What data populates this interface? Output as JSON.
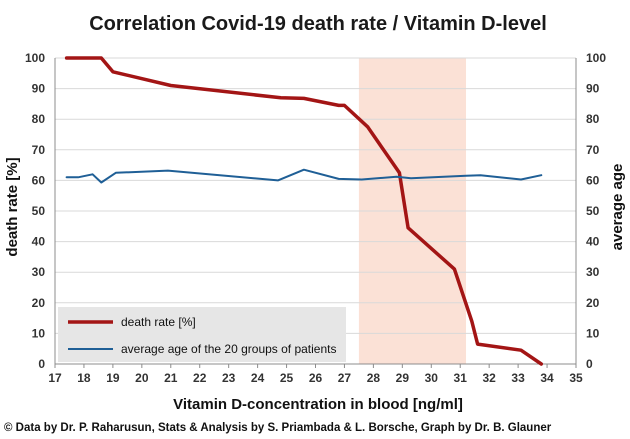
{
  "chart_data": {
    "type": "line",
    "title": "Correlation Covid-19 death rate / Vitamin D-level",
    "xlabel": "Vitamin D-concentration in blood [ng/ml]",
    "ylabel": "death rate [%]",
    "y2label": "average age",
    "xlim": [
      17,
      35
    ],
    "ylim": [
      0,
      100
    ],
    "y2lim": [
      0,
      100
    ],
    "x_ticks": [
      17,
      18,
      19,
      20,
      21,
      22,
      23,
      24,
      25,
      26,
      27,
      28,
      29,
      30,
      31,
      32,
      33,
      34,
      35
    ],
    "y_ticks": [
      0,
      10,
      20,
      30,
      40,
      50,
      60,
      70,
      80,
      90,
      100
    ],
    "y2_ticks": [
      0,
      10,
      20,
      30,
      40,
      50,
      60,
      70,
      80,
      90,
      100
    ],
    "shaded_region": {
      "x_start": 27.5,
      "x_end": 31.2,
      "color": "#fbe1d6"
    },
    "legend_position": "bottom-left",
    "series": [
      {
        "name": "death rate [%]",
        "axis": "left",
        "color": "#a31515",
        "x": [
          17.4,
          18.6,
          19.0,
          21.0,
          24.8,
          25.6,
          26.8,
          27.0,
          27.8,
          28.9,
          29.2,
          30.8,
          31.4,
          31.6,
          33.1,
          33.8
        ],
        "y": [
          100,
          100,
          95.5,
          91,
          87,
          86.8,
          84.5,
          84.5,
          77.5,
          62.5,
          44.5,
          31,
          14,
          6.5,
          4.5,
          0
        ]
      },
      {
        "name": "average age of the 20 groups of patients",
        "axis": "right",
        "color": "#1f5f96",
        "x": [
          17.4,
          17.8,
          18.3,
          18.6,
          19.1,
          20.9,
          24.7,
          25.6,
          26.8,
          27.6,
          28.8,
          29.3,
          31.2,
          31.7,
          33.1,
          33.8
        ],
        "y": [
          61,
          61,
          62,
          59.3,
          62.5,
          63.2,
          60,
          63.5,
          60.5,
          60.3,
          61.2,
          60.7,
          61.5,
          61.7,
          60.3,
          61.7
        ]
      }
    ]
  },
  "footer": {
    "credit": "© Data by Dr. P. Raharusun, Stats & Analysis by S. Priambada & L. Borsche, Graph by Dr. B. Glauner"
  }
}
